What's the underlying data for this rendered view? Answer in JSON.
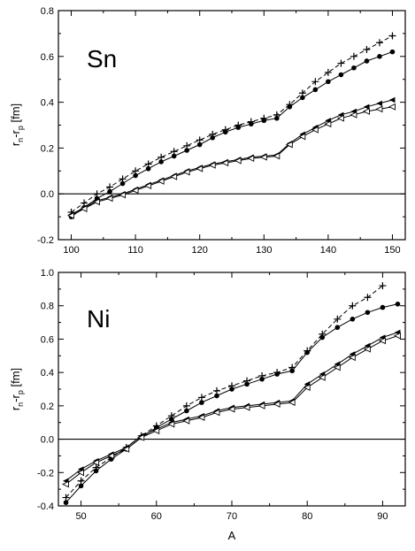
{
  "chart_data": [
    {
      "type": "line",
      "panel_label": "Sn",
      "xlabel": "",
      "ylabel_main": "r",
      "ylabel_sub1": "n",
      "ylabel_mid": "-r",
      "ylabel_sub2": "p",
      "ylabel_unit": " [fm]",
      "xlim": [
        98,
        152
      ],
      "ylim": [
        -0.2,
        0.8
      ],
      "xticks": [
        100,
        110,
        120,
        130,
        140,
        150
      ],
      "yticks": [
        -0.2,
        0.0,
        0.2,
        0.4,
        0.6,
        0.8
      ],
      "xtick_labels": [
        "100",
        "110",
        "120",
        "130",
        "140",
        "150"
      ],
      "ytick_labels": [
        "-0.2",
        "0.0",
        "0.2",
        "0.4",
        "0.6",
        "0.8"
      ],
      "zero_line": 0,
      "series": [
        {
          "marker": "plus",
          "dashed": true,
          "x": [
            100,
            102,
            104,
            106,
            108,
            110,
            112,
            114,
            116,
            118,
            120,
            122,
            124,
            126,
            128,
            130,
            132,
            134,
            136,
            138,
            140,
            142,
            144,
            146,
            148,
            150
          ],
          "y": [
            -0.08,
            -0.04,
            0.0,
            0.03,
            0.065,
            0.1,
            0.13,
            0.16,
            0.185,
            0.21,
            0.235,
            0.26,
            0.28,
            0.3,
            0.315,
            0.33,
            0.345,
            0.39,
            0.44,
            0.49,
            0.53,
            0.57,
            0.6,
            0.63,
            0.66,
            0.69
          ]
        },
        {
          "marker": "filled-circle",
          "dashed": false,
          "x": [
            100,
            102,
            104,
            106,
            108,
            110,
            112,
            114,
            116,
            118,
            120,
            122,
            124,
            126,
            128,
            130,
            132,
            134,
            136,
            138,
            140,
            142,
            144,
            146,
            148,
            150
          ],
          "y": [
            -0.1,
            -0.06,
            -0.02,
            0.01,
            0.045,
            0.08,
            0.11,
            0.14,
            0.165,
            0.19,
            0.215,
            0.245,
            0.27,
            0.29,
            0.305,
            0.32,
            0.33,
            0.38,
            0.42,
            0.455,
            0.49,
            0.52,
            0.55,
            0.58,
            0.6,
            0.62
          ]
        },
        {
          "marker": "filled-triangle-left",
          "dashed": false,
          "x": [
            100,
            102,
            104,
            106,
            108,
            110,
            112,
            114,
            116,
            118,
            120,
            122,
            124,
            126,
            128,
            130,
            132,
            134,
            136,
            138,
            140,
            142,
            144,
            146,
            148,
            150
          ],
          "y": [
            -0.09,
            -0.06,
            -0.03,
            -0.015,
            0.0,
            0.02,
            0.04,
            0.06,
            0.08,
            0.1,
            0.115,
            0.13,
            0.14,
            0.15,
            0.16,
            0.165,
            0.17,
            0.22,
            0.26,
            0.29,
            0.32,
            0.345,
            0.36,
            0.38,
            0.395,
            0.41
          ]
        },
        {
          "marker": "open-triangle-left",
          "dashed": false,
          "x": [
            100,
            102,
            104,
            106,
            108,
            110,
            112,
            114,
            116,
            118,
            120,
            122,
            124,
            126,
            128,
            130,
            132,
            134,
            136,
            138,
            140,
            142,
            144,
            146,
            148,
            150
          ],
          "y": [
            -0.095,
            -0.065,
            -0.035,
            -0.02,
            -0.005,
            0.015,
            0.035,
            0.055,
            0.075,
            0.095,
            0.11,
            0.125,
            0.135,
            0.145,
            0.155,
            0.16,
            0.165,
            0.215,
            0.25,
            0.28,
            0.305,
            0.33,
            0.345,
            0.36,
            0.37,
            0.38
          ]
        }
      ]
    },
    {
      "type": "line",
      "panel_label": "Ni",
      "xlabel": "A",
      "ylabel_main": "r",
      "ylabel_sub1": "n",
      "ylabel_mid": "-r",
      "ylabel_sub2": "p",
      "ylabel_unit": " [fm]",
      "xlim": [
        47,
        93
      ],
      "ylim": [
        -0.4,
        1.0
      ],
      "xticks": [
        50,
        60,
        70,
        80,
        90
      ],
      "yticks": [
        -0.4,
        -0.2,
        0.0,
        0.2,
        0.4,
        0.6,
        0.8,
        1.0
      ],
      "xtick_labels": [
        "50",
        "60",
        "70",
        "80",
        "90"
      ],
      "ytick_labels": [
        "-0.4",
        "-0.2",
        "0.0",
        "0.2",
        "0.4",
        "0.6",
        "0.8",
        "1.0"
      ],
      "zero_line": 0,
      "series": [
        {
          "marker": "plus",
          "dashed": true,
          "x": [
            48,
            50,
            52,
            54,
            56,
            58,
            60,
            62,
            64,
            66,
            68,
            70,
            72,
            74,
            76,
            78,
            80,
            82,
            84,
            86,
            88,
            90
          ],
          "y": [
            -0.35,
            -0.25,
            -0.17,
            -0.11,
            -0.05,
            0.02,
            0.08,
            0.14,
            0.2,
            0.25,
            0.29,
            0.32,
            0.35,
            0.38,
            0.4,
            0.43,
            0.53,
            0.63,
            0.72,
            0.8,
            0.85,
            0.92
          ]
        },
        {
          "marker": "filled-circle",
          "dashed": false,
          "x": [
            48,
            50,
            52,
            54,
            56,
            58,
            60,
            62,
            64,
            66,
            68,
            70,
            72,
            74,
            76,
            78,
            80,
            82,
            84,
            86,
            88,
            90,
            92
          ],
          "y": [
            -0.38,
            -0.28,
            -0.19,
            -0.12,
            -0.06,
            0.01,
            0.07,
            0.12,
            0.17,
            0.22,
            0.26,
            0.3,
            0.33,
            0.36,
            0.39,
            0.41,
            0.52,
            0.61,
            0.67,
            0.72,
            0.76,
            0.79,
            0.81
          ]
        },
        {
          "marker": "filled-triangle-left",
          "dashed": false,
          "x": [
            48,
            50,
            52,
            54,
            56,
            58,
            60,
            62,
            64,
            66,
            68,
            70,
            72,
            74,
            76,
            78,
            80,
            82,
            84,
            86,
            88,
            90,
            92
          ],
          "y": [
            -0.25,
            -0.18,
            -0.13,
            -0.09,
            -0.05,
            0.02,
            0.06,
            0.1,
            0.12,
            0.14,
            0.17,
            0.19,
            0.2,
            0.21,
            0.22,
            0.23,
            0.33,
            0.39,
            0.45,
            0.51,
            0.56,
            0.61,
            0.64
          ]
        },
        {
          "marker": "open-triangle-left",
          "dashed": false,
          "x": [
            48,
            50,
            52,
            54,
            56,
            58,
            60,
            62,
            64,
            66,
            68,
            70,
            72,
            74,
            76,
            78,
            80,
            82,
            84,
            86,
            88,
            90,
            92
          ],
          "y": [
            -0.27,
            -0.2,
            -0.14,
            -0.1,
            -0.06,
            0.01,
            0.05,
            0.09,
            0.11,
            0.13,
            0.16,
            0.18,
            0.19,
            0.2,
            0.21,
            0.22,
            0.31,
            0.37,
            0.43,
            0.49,
            0.54,
            0.59,
            0.62
          ]
        }
      ]
    }
  ]
}
